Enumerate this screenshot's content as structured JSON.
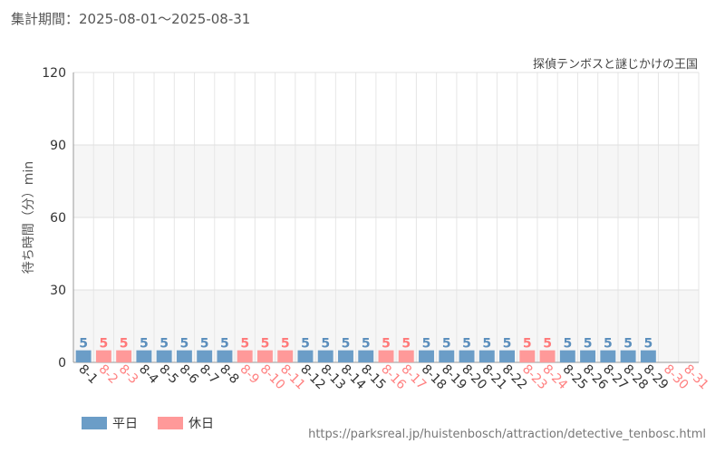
{
  "header": {
    "period_label": "集計期間：2025-08-01～2025-08-31",
    "attraction_name": "探偵テンボスと謎じかけの王国",
    "source_url": "https://parksreal.jp/huistenbosch/attraction/detective_tenbosc.html"
  },
  "legend": {
    "weekday": {
      "label": "平日",
      "color": "#6b9dc7"
    },
    "holiday": {
      "label": "休日",
      "color": "#ff9999"
    }
  },
  "chart_data": {
    "type": "bar",
    "title": "",
    "ylabel": "待ち時間（分）min",
    "xlabel": "",
    "ylim": [
      0,
      120
    ],
    "yticks": [
      0,
      30,
      60,
      90,
      120
    ],
    "grid": true,
    "legend_position": "bottom-left",
    "categories": [
      "8-1",
      "8-2",
      "8-3",
      "8-4",
      "8-5",
      "8-6",
      "8-7",
      "8-8",
      "8-9",
      "8-10",
      "8-11",
      "8-12",
      "8-13",
      "8-14",
      "8-15",
      "8-16",
      "8-17",
      "8-18",
      "8-19",
      "8-20",
      "8-21",
      "8-22",
      "8-23",
      "8-24",
      "8-25",
      "8-26",
      "8-27",
      "8-28",
      "8-29",
      "8-30",
      "8-31"
    ],
    "day_types": [
      "weekday",
      "holiday",
      "holiday",
      "weekday",
      "weekday",
      "weekday",
      "weekday",
      "weekday",
      "holiday",
      "holiday",
      "holiday",
      "weekday",
      "weekday",
      "weekday",
      "weekday",
      "holiday",
      "holiday",
      "weekday",
      "weekday",
      "weekday",
      "weekday",
      "weekday",
      "holiday",
      "holiday",
      "weekday",
      "weekday",
      "weekday",
      "weekday",
      "weekday",
      "holiday",
      "holiday"
    ],
    "values": [
      5,
      5,
      5,
      5,
      5,
      5,
      5,
      5,
      5,
      5,
      5,
      5,
      5,
      5,
      5,
      5,
      5,
      5,
      5,
      5,
      5,
      5,
      5,
      5,
      5,
      5,
      5,
      5,
      5,
      null,
      null
    ]
  }
}
